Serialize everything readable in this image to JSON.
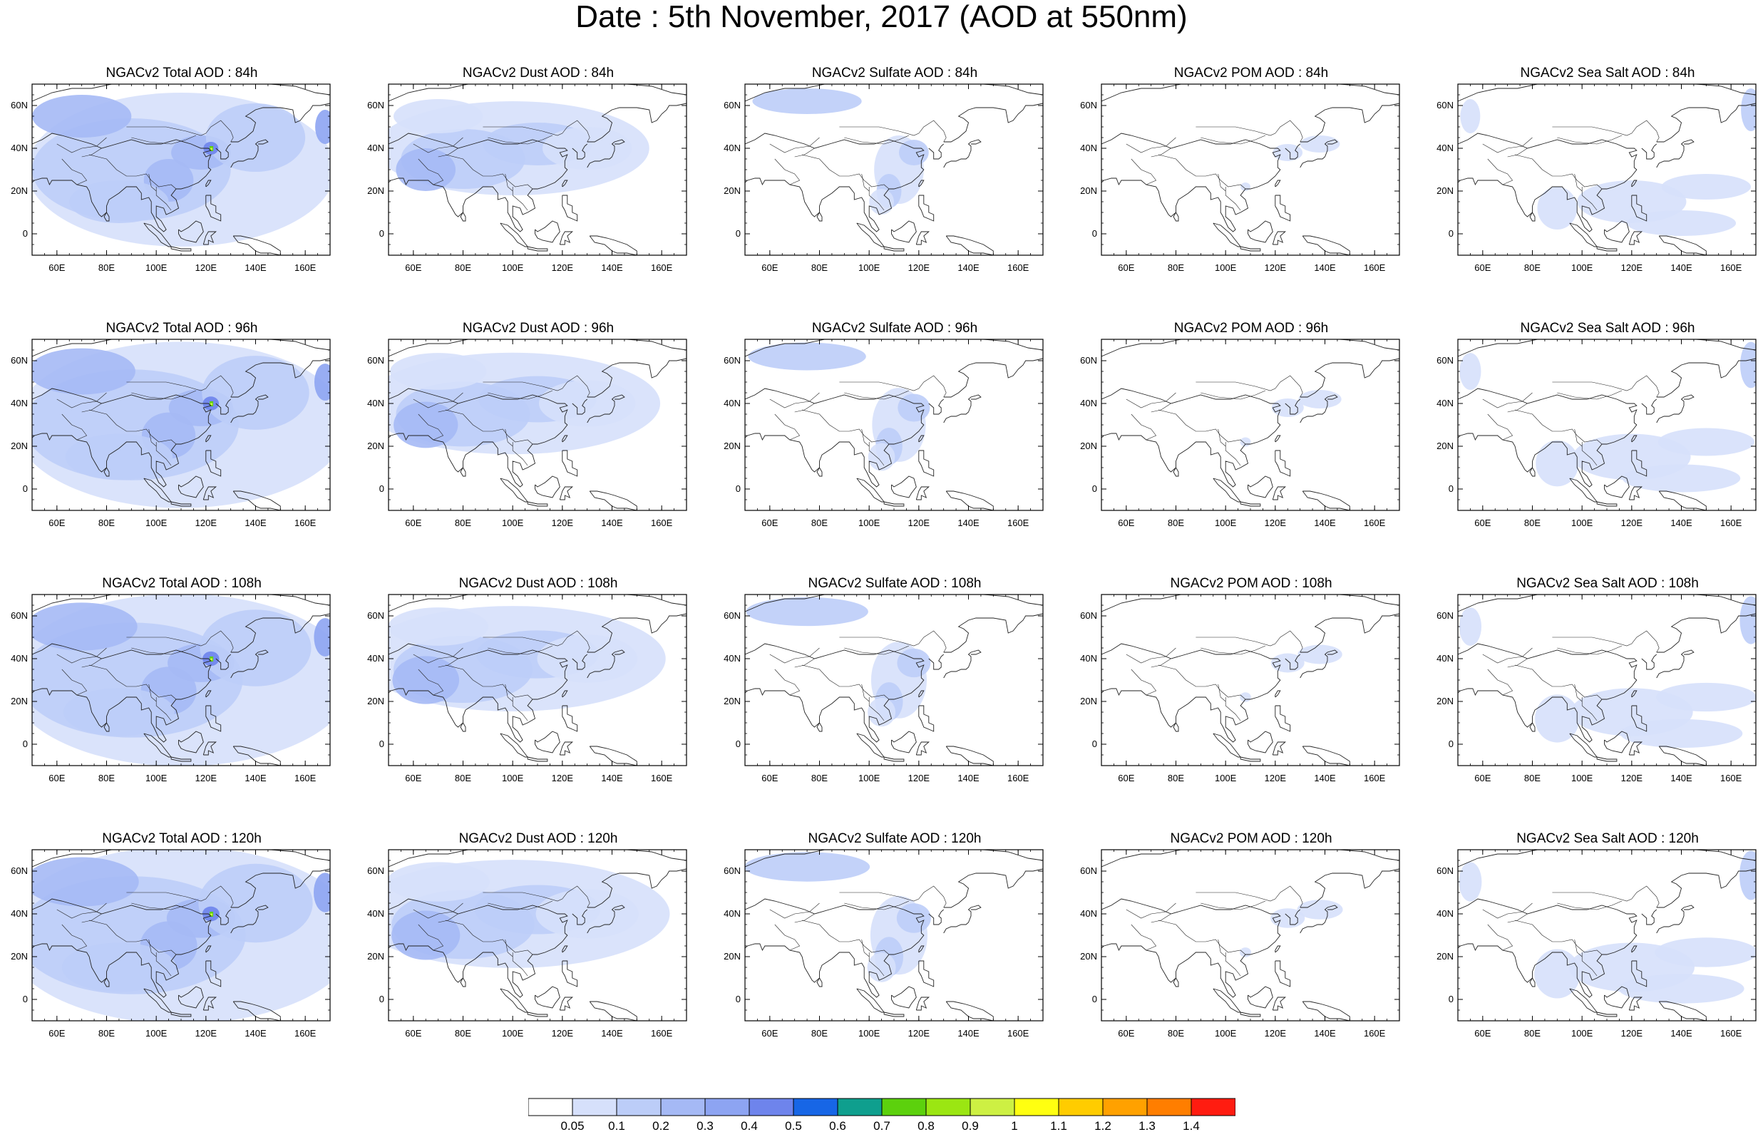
{
  "title": "Date : 5th November, 2017 (AOD at 550nm)",
  "axes": {
    "lon_ticks": [
      "60E",
      "80E",
      "100E",
      "120E",
      "140E",
      "160E"
    ],
    "lon_values": [
      60,
      80,
      100,
      120,
      140,
      160
    ],
    "lat_ticks": [
      "60N",
      "40N",
      "20N",
      "0"
    ],
    "lat_values": [
      60,
      40,
      20,
      0
    ],
    "lon_range": [
      50,
      170
    ],
    "lat_range": [
      -10,
      70
    ]
  },
  "panels": [
    {
      "title": "NGACv2 Total AOD : 84h",
      "species": "total",
      "hour": 84
    },
    {
      "title": "NGACv2 Dust AOD : 84h",
      "species": "dust",
      "hour": 84
    },
    {
      "title": "NGACv2 Sulfate AOD : 84h",
      "species": "sulfate",
      "hour": 84
    },
    {
      "title": "NGACv2 POM AOD : 84h",
      "species": "pom",
      "hour": 84
    },
    {
      "title": "NGACv2 Sea Salt AOD : 84h",
      "species": "seasalt",
      "hour": 84
    },
    {
      "title": "NGACv2 Total AOD : 96h",
      "species": "total",
      "hour": 96
    },
    {
      "title": "NGACv2 Dust AOD : 96h",
      "species": "dust",
      "hour": 96
    },
    {
      "title": "NGACv2 Sulfate AOD : 96h",
      "species": "sulfate",
      "hour": 96
    },
    {
      "title": "NGACv2 POM AOD : 96h",
      "species": "pom",
      "hour": 96
    },
    {
      "title": "NGACv2 Sea Salt AOD : 96h",
      "species": "seasalt",
      "hour": 96
    },
    {
      "title": "NGACv2 Total AOD : 108h",
      "species": "total",
      "hour": 108
    },
    {
      "title": "NGACv2 Dust AOD : 108h",
      "species": "dust",
      "hour": 108
    },
    {
      "title": "NGACv2 Sulfate AOD : 108h",
      "species": "sulfate",
      "hour": 108
    },
    {
      "title": "NGACv2 POM AOD : 108h",
      "species": "pom",
      "hour": 108
    },
    {
      "title": "NGACv2 Sea Salt AOD : 108h",
      "species": "seasalt",
      "hour": 108
    },
    {
      "title": "NGACv2 Total AOD : 120h",
      "species": "total",
      "hour": 120
    },
    {
      "title": "NGACv2 Dust AOD : 120h",
      "species": "dust",
      "hour": 120
    },
    {
      "title": "NGACv2 Sulfate AOD : 120h",
      "species": "sulfate",
      "hour": 120
    },
    {
      "title": "NGACv2 POM AOD : 120h",
      "species": "pom",
      "hour": 120
    },
    {
      "title": "NGACv2 Sea Salt  AOD : 120h",
      "species": "seasalt",
      "hour": 120
    }
  ],
  "colorbar": {
    "labels": [
      "0.05",
      "0.1",
      "0.2",
      "0.3",
      "0.4",
      "0.5",
      "0.6",
      "0.7",
      "0.8",
      "0.9",
      "1",
      "1.1",
      "1.2",
      "1.3",
      "1.4"
    ],
    "colors": [
      "#ffffff",
      "#d6e0fb",
      "#bccdf8",
      "#a5b9f5",
      "#8da4f2",
      "#6e84ec",
      "#1766e6",
      "#0f9f8e",
      "#5cd10d",
      "#9be612",
      "#cdf043",
      "#ffff10",
      "#ffcc00",
      "#ffa100",
      "#ff7e00",
      "#ff1c10"
    ]
  },
  "field_colors": {
    "low": "#d6e0fb",
    "mid": "#bccdf8",
    "high": "#a5b9f5",
    "veryhigh": "#8da4f2",
    "peak": "#6e84ec",
    "hotspot_green": "#5cd10d",
    "hotspot_yellow": "#cdf043"
  }
}
